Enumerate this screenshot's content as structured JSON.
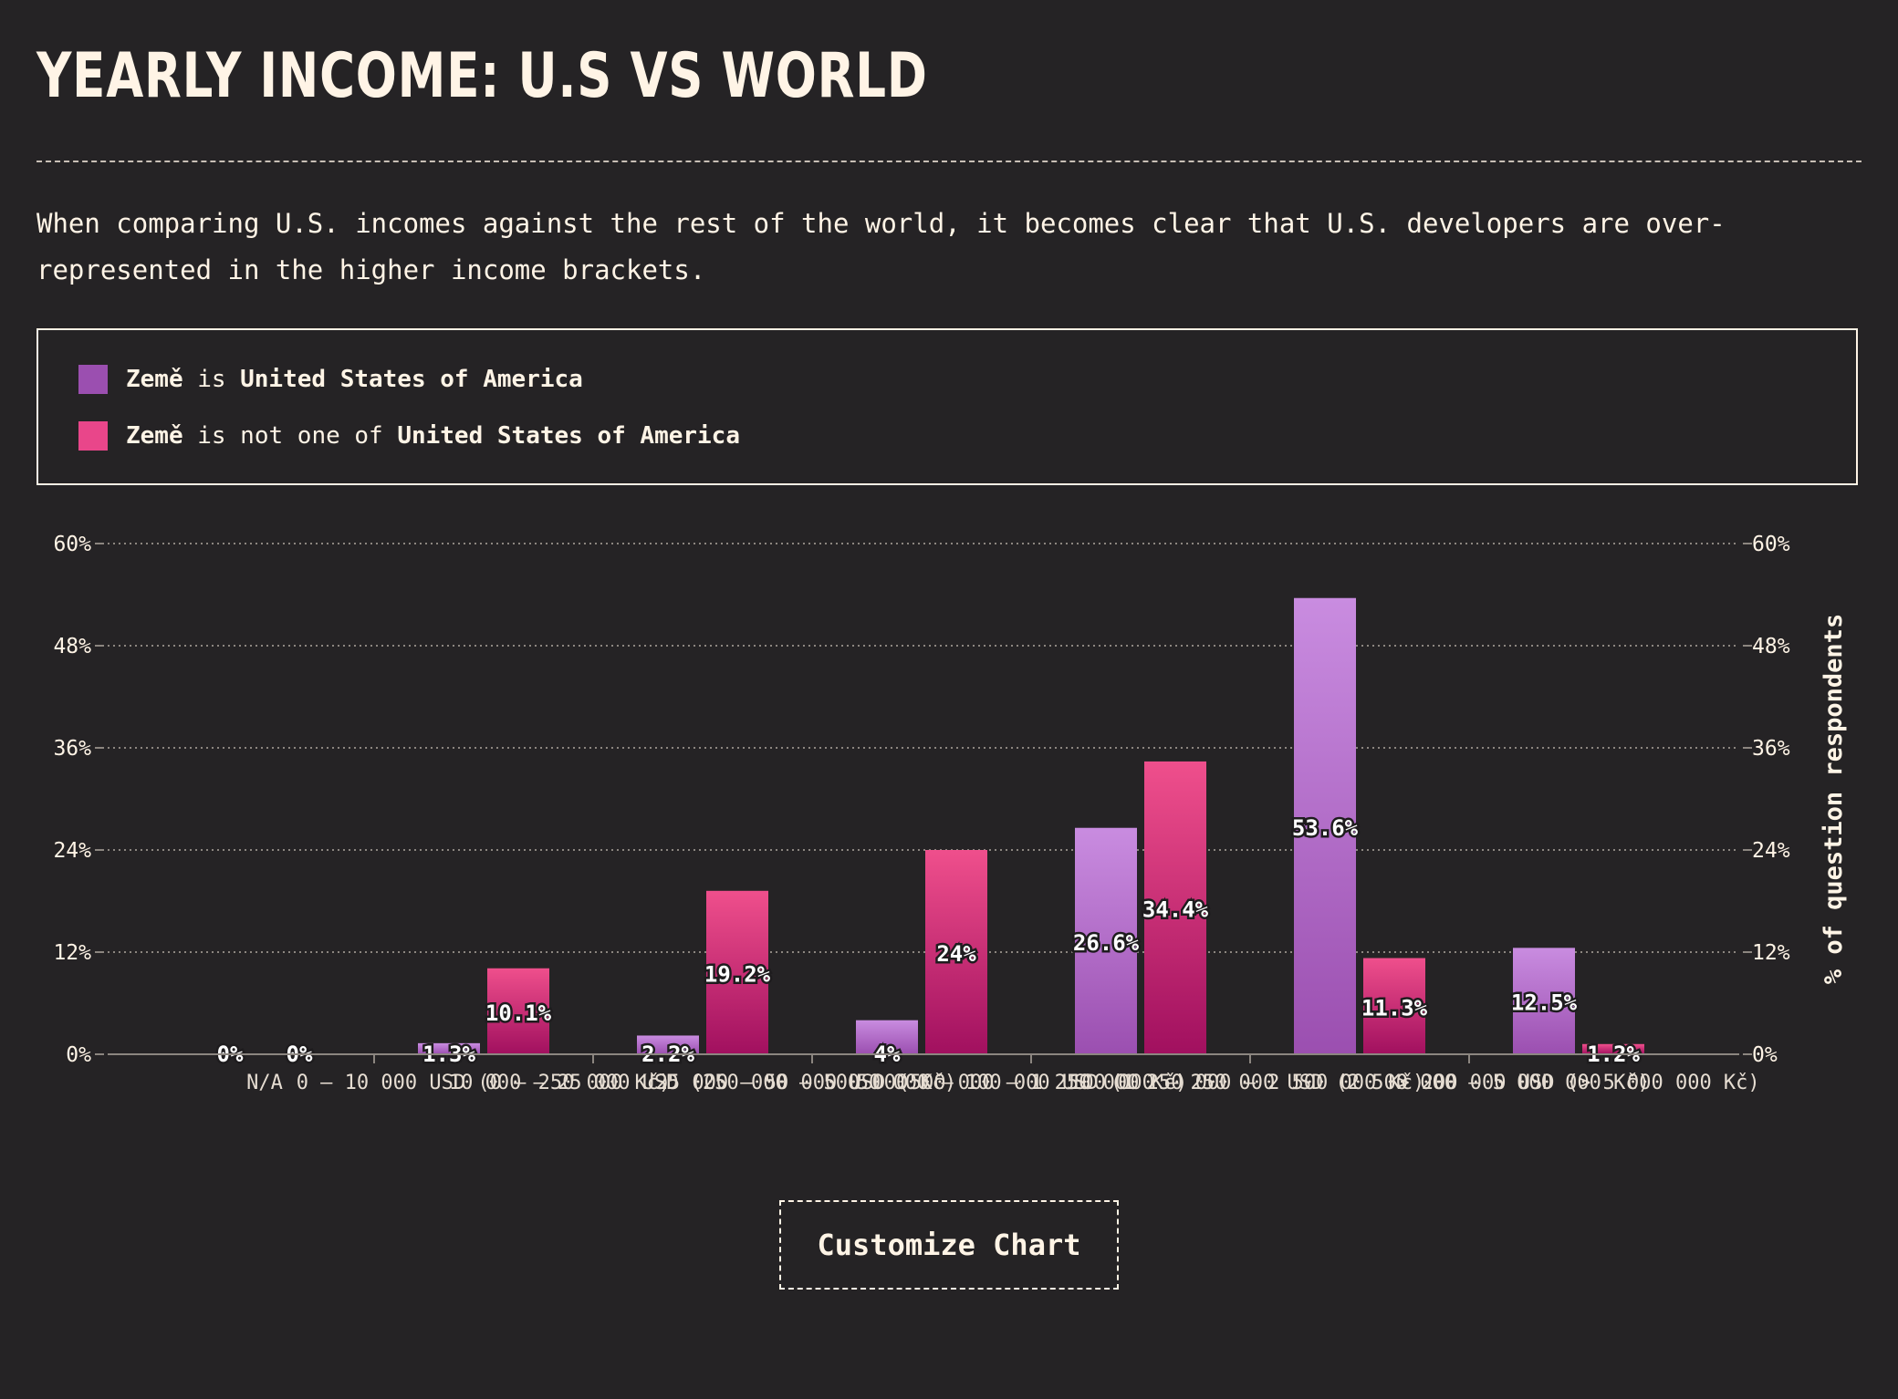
{
  "page": {
    "title": "YEARLY INCOME: U.S VS WORLD",
    "description": "When comparing U.S. incomes against the rest of the world, it becomes clear that U.S. developers are over-represented in the higher income brackets.",
    "customize_label": "Customize Chart"
  },
  "legend": {
    "items": [
      {
        "field": "Země",
        "operator": "is",
        "value": "United States of America",
        "color": "#9b4fb0"
      },
      {
        "field": "Země",
        "operator": "is not one of",
        "value": "United States of America",
        "color": "#e9468a"
      }
    ]
  },
  "colors": {
    "background": "#252325",
    "text": "#fff4e6",
    "series_us_top": "#c98ce0",
    "series_us_bottom": "#9b4fb0",
    "series_world_top": "#ef4f8c",
    "series_world_bottom": "#a1105f"
  },
  "chart_data": {
    "type": "bar",
    "ylabel": "% of question respondents",
    "ylim": [
      0,
      60
    ],
    "yticks": [
      "0%",
      "12%",
      "24%",
      "36%",
      "48%",
      "60%"
    ],
    "grid": true,
    "categories": [
      "N/A",
      "0 – 10 000 USD (0 – 250 000 Kč)",
      "10 000 – 25 000 USD (250 000 – 500 000 Kč)",
      "25 000 – 50 000 USD (500 000 – 1 250 000 Kč)",
      "50 000 – 100 000 USD (1 250 000 – 2 500 000 Kč)",
      "100 000 – 250 000 USD (2 500 000 – 5 000 000 Kč)",
      "> 200 000 USD (> 5 000 000 Kč)"
    ],
    "series": [
      {
        "values": [
          0,
          1.3,
          2.2,
          4,
          26.6,
          53.6,
          12.5
        ],
        "labels": [
          "0%",
          "1.3%",
          "2.2%",
          "4%",
          "26.6%",
          "53.6%",
          "12.5%"
        ]
      },
      {
        "values": [
          0,
          10.1,
          19.2,
          24,
          34.4,
          11.3,
          1.2
        ],
        "labels": [
          "0%",
          "10.1%",
          "19.2%",
          "24%",
          "34.4%",
          "11.3%",
          "1.2%"
        ]
      }
    ]
  }
}
